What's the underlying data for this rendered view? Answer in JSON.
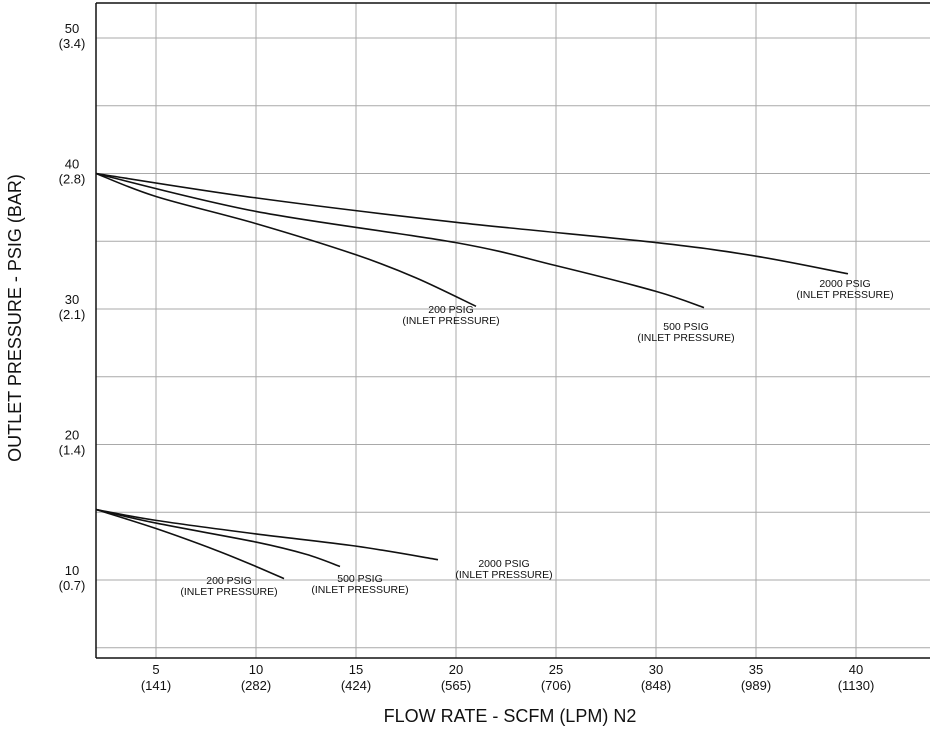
{
  "chart_data": {
    "type": "line",
    "title": "",
    "xlabel": "FLOW RATE - SCFM (LPM) N2",
    "ylabel": "OUTLET PRESSURE - PSIG (BAR)",
    "xlim": [
      2,
      42
    ],
    "ylim": [
      4,
      54
    ],
    "grid": true,
    "legend": "none",
    "x_ticks": [
      {
        "value": 5,
        "label": "5",
        "sublabel": "(141)"
      },
      {
        "value": 10,
        "label": "10",
        "sublabel": "(282)"
      },
      {
        "value": 15,
        "label": "15",
        "sublabel": "(424)"
      },
      {
        "value": 20,
        "label": "20",
        "sublabel": "(565)"
      },
      {
        "value": 25,
        "label": "25",
        "sublabel": "(706)"
      },
      {
        "value": 30,
        "label": "30",
        "sublabel": "(848)"
      },
      {
        "value": 35,
        "label": "35",
        "sublabel": "(989)"
      },
      {
        "value": 40,
        "label": "40",
        "sublabel": "(1130)"
      }
    ],
    "y_ticks": [
      {
        "value": 10,
        "label": "10",
        "sublabel": "(0.7)"
      },
      {
        "value": 20,
        "label": "20",
        "sublabel": "(1.4)"
      },
      {
        "value": 30,
        "label": "30",
        "sublabel": "(2.1)"
      },
      {
        "value": 40,
        "label": "40",
        "sublabel": "(2.8)"
      },
      {
        "value": 50,
        "label": "50",
        "sublabel": "(3.4)"
      }
    ],
    "x_grid": [
      2,
      5,
      10,
      15,
      20,
      25,
      30,
      35,
      40
    ],
    "y_grid": [
      5,
      10,
      15,
      20,
      25,
      30,
      35,
      40,
      45,
      50,
      55
    ],
    "series": [
      {
        "x": [
          2,
          5,
          10,
          15,
          18,
          21
        ],
        "y": [
          40,
          38.3,
          36.3,
          34,
          32.3,
          30.2
        ],
        "label": [
          "200 PSIG",
          "(INLET PRESSURE)"
        ]
      },
      {
        "x": [
          2,
          10,
          20,
          25,
          30,
          32.4
        ],
        "y": [
          40,
          37.2,
          34.9,
          33.2,
          31.3,
          30.1
        ],
        "label": [
          "500 PSIG",
          "(INLET PRESSURE)"
        ]
      },
      {
        "x": [
          2,
          10,
          20,
          30,
          35,
          39.6
        ],
        "y": [
          40,
          38.2,
          36.4,
          34.9,
          33.9,
          32.6
        ],
        "label": [
          "2000 PSIG",
          "(INLET PRESSURE)"
        ]
      },
      {
        "x": [
          2,
          5,
          8,
          10,
          11.4
        ],
        "y": [
          15.2,
          13.8,
          12.2,
          11,
          10.1
        ],
        "label": [
          "200 PSIG",
          "(INLET PRESSURE)"
        ]
      },
      {
        "x": [
          2,
          5,
          10,
          12.5,
          14.2
        ],
        "y": [
          15.2,
          14.2,
          12.8,
          11.9,
          11
        ],
        "label": [
          "500 PSIG",
          "(INLET PRESSURE)"
        ]
      },
      {
        "x": [
          2,
          5,
          10,
          15,
          19.1
        ],
        "y": [
          15.2,
          14.4,
          13.4,
          12.5,
          11.5
        ],
        "label": [
          "2000 PSIG",
          "(INLET PRESSURE)"
        ]
      }
    ]
  }
}
